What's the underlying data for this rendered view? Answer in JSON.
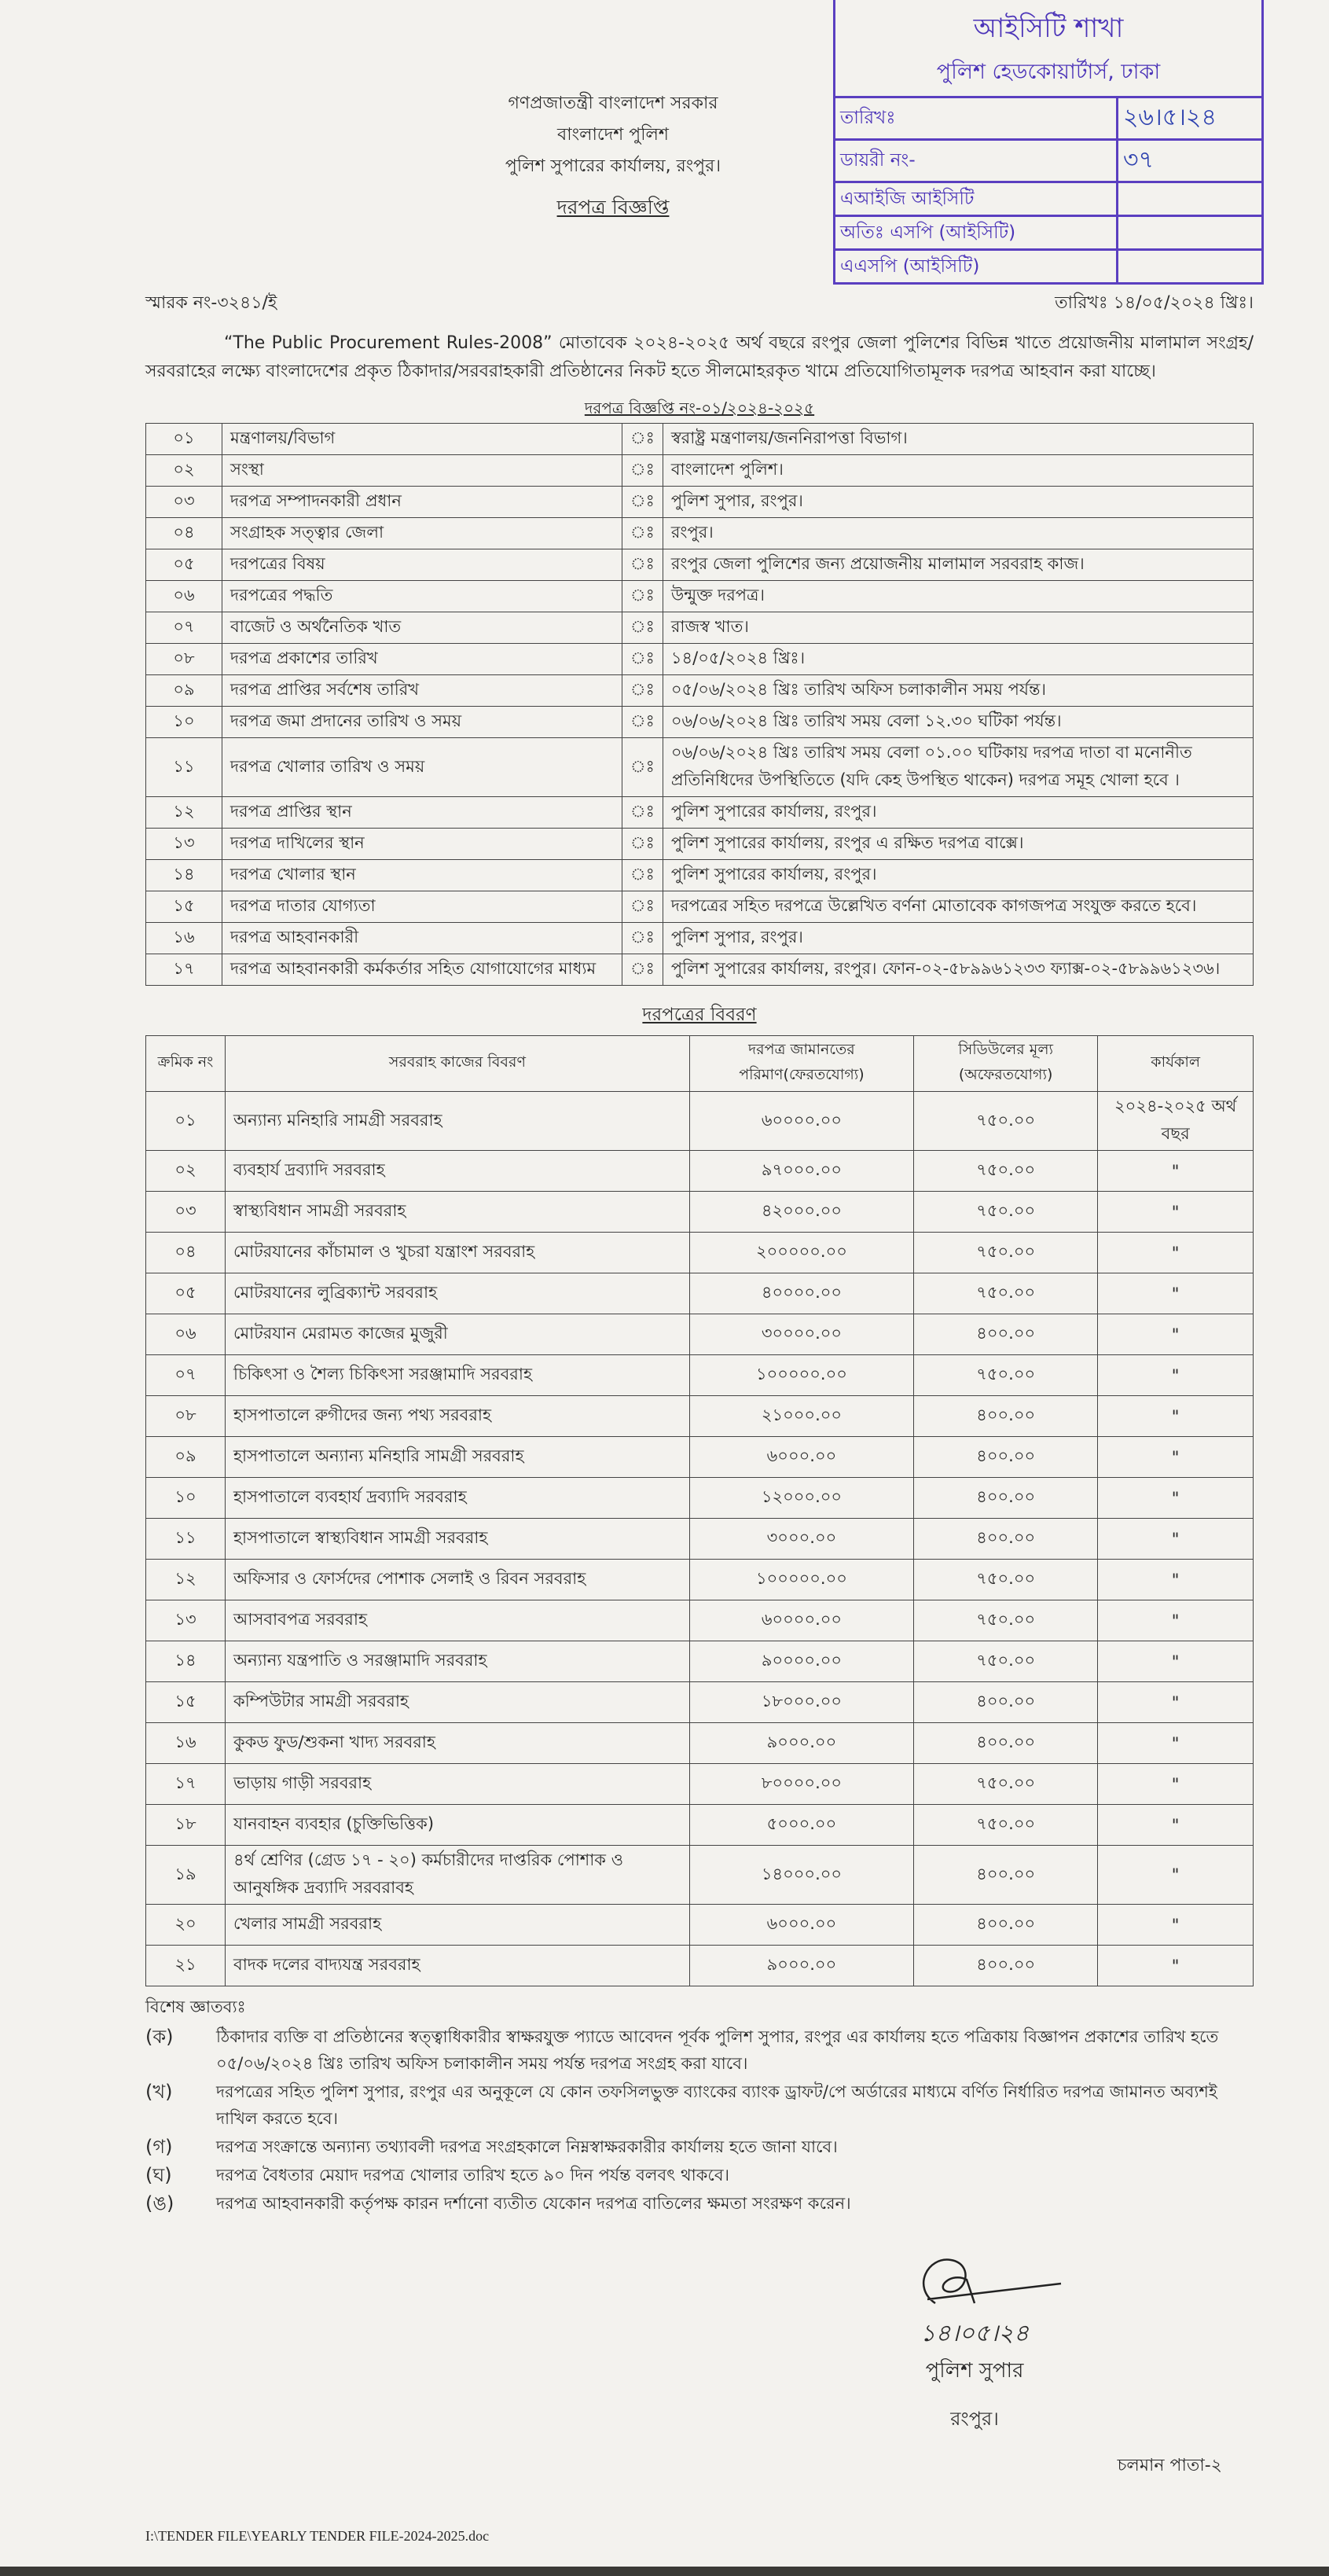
{
  "stamp": {
    "title": "আইসিটি শাখা",
    "subtitle": "পুলিশ হেডকোয়ার্টার্স, ঢাকা",
    "rows": [
      {
        "label": "তারিখঃ",
        "value": "২৬।৫।২৪"
      },
      {
        "label": "ডায়রী নং-",
        "value": "৩৭"
      },
      {
        "label": "এআইজি আইসিটি",
        "value": ""
      },
      {
        "label": "অতিঃ এসপি (আইসিটি)",
        "value": ""
      },
      {
        "label": "এএসপি (আইসিটি)",
        "value": ""
      }
    ]
  },
  "header": {
    "line1": "গণপ্রজাতন্ত্রী বাংলাদেশ সরকার",
    "line2": "বাংলাদেশ পুলিশ",
    "line3": "পুলিশ সুপারের কার্যালয়, রংপুর।",
    "title": "দরপত্র বিজ্ঞপ্তি"
  },
  "memo_no": "স্মারক নং-৩২৪১/ই",
  "date": "তারিখঃ ১৪/০৫/২০২৪ খ্রিঃ।",
  "intro": "“The Public Procurement Rules-2008” মোতাবেক ২০২৪-২০২৫ অর্থ বছরে রংপুর জেলা পুলিশের বিভিন্ন খাতে প্রয়োজনীয় মালামাল সংগ্রহ/সরবরাহের লক্ষ্যে বাংলাদেশের প্রকৃত ঠিকাদার/সরবরাহকারী প্রতিষ্ঠানের নিকট হতে সীলমোহরকৃত খামে প্রতিযোগিতামূলক দরপত্র আহবান করা যাচ্ছে।",
  "notice_no": "দরপত্র বিজ্ঞপ্তি নং-০১/২০২৪-২০২৫",
  "info_table": [
    {
      "no": "০১",
      "label": "মন্ত্রণালয়/বিভাগ",
      "value": "স্বরাষ্ট্র মন্ত্রণালয়/জননিরাপত্তা বিভাগ।"
    },
    {
      "no": "০২",
      "label": "সংস্থা",
      "value": "বাংলাদেশ পুলিশ।"
    },
    {
      "no": "০৩",
      "label": "দরপত্র সম্পাদনকারী প্রধান",
      "value": "পুলিশ সুপার, রংপুর।"
    },
    {
      "no": "০৪",
      "label": "সংগ্রাহক সত্ত্বার জেলা",
      "value": "রংপুর।"
    },
    {
      "no": "০৫",
      "label": "দরপত্রের বিষয়",
      "value": "রংপুর জেলা পুলিশের জন্য প্রয়োজনীয় মালামাল সরবরাহ কাজ।"
    },
    {
      "no": "০৬",
      "label": "দরপত্রের পদ্ধতি",
      "value": "উন্মুক্ত দরপত্র।"
    },
    {
      "no": "০৭",
      "label": "বাজেট ও অর্থনৈতিক খাত",
      "value": "রাজস্ব খাত।"
    },
    {
      "no": "০৮",
      "label": "দরপত্র প্রকাশের তারিখ",
      "value": "১৪/০৫/২০২৪ খ্রিঃ।"
    },
    {
      "no": "০৯",
      "label": "দরপত্র প্রাপ্তির সর্বশেষ তারিখ",
      "value": "০৫/০৬/২০২৪ খ্রিঃ তারিখ অফিস চলাকালীন সময় পর্যন্ত।"
    },
    {
      "no": "১০",
      "label": "দরপত্র জমা প্রদানের তারিখ ও সময়",
      "value": "০৬/০৬/২০২৪ খ্রিঃ তারিখ সময় বেলা ১২.৩০ ঘটিকা পর্যন্ত।"
    },
    {
      "no": "১১",
      "label": "দরপত্র খোলার তারিখ ও সময়",
      "value": "০৬/০৬/২০২৪ খ্রিঃ তারিখ সময় বেলা ০১.০০ ঘটিকায় দরপত্র দাতা বা মনোনীত প্রতিনিধিদের উপস্থিতিতে (যদি কেহ উপস্থিত থাকেন) দরপত্র সমূহ খোলা হবে ।"
    },
    {
      "no": "১২",
      "label": "দরপত্র প্রাপ্তির স্থান",
      "value": "পুলিশ সুপারের কার্যালয়, রংপুর।"
    },
    {
      "no": "১৩",
      "label": "দরপত্র দাখিলের স্থান",
      "value": "পুলিশ সুপারের কার্যালয়, রংপুর এ রক্ষিত দরপত্র বাক্সে।"
    },
    {
      "no": "১৪",
      "label": "দরপত্র খোলার স্থান",
      "value": "পুলিশ সুপারের কার্যালয়, রংপুর।"
    },
    {
      "no": "১৫",
      "label": "দরপত্র দাতার যোগ্যতা",
      "value": "দরপত্রের সহিত দরপত্রে উল্লেখিত বর্ণনা মোতাবেক কাগজপত্র সংযুক্ত করতে হবে।"
    },
    {
      "no": "১৬",
      "label": "দরপত্র আহবানকারী",
      "value": "পুলিশ সুপার, রংপুর।"
    },
    {
      "no": "১৭",
      "label": "দরপত্র আহবানকারী কর্মকর্তার সহিত যোগাযোগের মাধ্যম",
      "value": "পুলিশ সুপারের কার্যালয়, রংপুর। ফোন-০২-৫৮৯৯৬১২৩৩ ফ্যাক্স-০২-৫৮৯৯৬১২৩৬।"
    }
  ],
  "colon": "ঃ",
  "details_title": "দরপত্রের বিবরণ",
  "details_headers": [
    "ক্রমিক নং",
    "সরবরাহ কাজের বিবরণ",
    "দরপত্র জামানতের পরিমাণ(ফেরতযোগ্য)",
    "সিডিউলের মূল্য (অফেরতযোগ্য)",
    "কার্যকাল"
  ],
  "details_rows": [
    {
      "no": "০১",
      "desc": "অন্যান্য মনিহারি সামগ্রী সরবরাহ",
      "security": "৬০০০০.০০",
      "schedule": "৭৫০.০০",
      "period": "২০২৪-২০২৫ অর্থ বছর"
    },
    {
      "no": "০২",
      "desc": "ব্যবহার্য দ্রব্যাদি সরবরাহ",
      "security": "৯৭০০০.০০",
      "schedule": "৭৫০.০০",
      "period": "\""
    },
    {
      "no": "০৩",
      "desc": "স্বাস্থ্যবিধান সামগ্রী সরবরাহ",
      "security": "৪২০০০.০০",
      "schedule": "৭৫০.০০",
      "period": "\""
    },
    {
      "no": "০৪",
      "desc": "মোটরযানের কাঁচামাল ও খুচরা যন্ত্রাংশ সরবরাহ",
      "security": "২০০০০০.০০",
      "schedule": "৭৫০.০০",
      "period": "\""
    },
    {
      "no": "০৫",
      "desc": "মোটরযানের লুব্রিক্যান্ট সরবরাহ",
      "security": "৪০০০০.০০",
      "schedule": "৭৫০.০০",
      "period": "\""
    },
    {
      "no": "০৬",
      "desc": "মোটরযান মেরামত কাজের মুজুরী",
      "security": "৩০০০০.০০",
      "schedule": "৪০০.০০",
      "period": "\""
    },
    {
      "no": "০৭",
      "desc": "চিকিৎসা ও শৈল্য চিকিৎসা সরঞ্জামাদি সরবরাহ",
      "security": "১০০০০০.০০",
      "schedule": "৭৫০.০০",
      "period": "\""
    },
    {
      "no": "০৮",
      "desc": "হাসপাতালে রুগীদের জন্য পথ্য সরবরাহ",
      "security": "২১০০০.০০",
      "schedule": "৪০০.০০",
      "period": "\""
    },
    {
      "no": "০৯",
      "desc": "হাসপাতালে অন্যান্য মনিহারি সামগ্রী সরবরাহ",
      "security": "৬০০০.০০",
      "schedule": "৪০০.০০",
      "period": "\""
    },
    {
      "no": "১০",
      "desc": "হাসপাতালে ব্যবহার্য দ্রব্যাদি সরবরাহ",
      "security": "১২০০০.০০",
      "schedule": "৪০০.০০",
      "period": "\""
    },
    {
      "no": "১১",
      "desc": "হাসপাতালে স্বাস্থ্যবিধান সামগ্রী সরবরাহ",
      "security": "৩০০০.০০",
      "schedule": "৪০০.০০",
      "period": "\""
    },
    {
      "no": "১২",
      "desc": "অফিসার ও ফোর্সদের পোশাক সেলাই ও রিবন সরবরাহ",
      "security": "১০০০০০.০০",
      "schedule": "৭৫০.০০",
      "period": "\""
    },
    {
      "no": "১৩",
      "desc": "আসবাবপত্র সরবরাহ",
      "security": "৬০০০০.০০",
      "schedule": "৭৫০.০০",
      "period": "\""
    },
    {
      "no": "১৪",
      "desc": "অন্যান্য যন্ত্রপাতি ও সরঞ্জামাদি সরবরাহ",
      "security": "৯০০০০.০০",
      "schedule": "৭৫০.০০",
      "period": "\""
    },
    {
      "no": "১৫",
      "desc": "কম্পিউটার সামগ্রী সরবরাহ",
      "security": "১৮০০০.০০",
      "schedule": "৪০০.০০",
      "period": "\""
    },
    {
      "no": "১৬",
      "desc": "কুকড ফুড/শুকনা খাদ্য সরবরাহ",
      "security": "৯০০০.০০",
      "schedule": "৪০০.০০",
      "period": "\""
    },
    {
      "no": "১৭",
      "desc": "ভাড়ায় গাড়ী সরবরাহ",
      "security": "৮০০০০.০০",
      "schedule": "৭৫০.০০",
      "period": "\""
    },
    {
      "no": "১৮",
      "desc": "যানবাহন ব্যবহার (চুক্তিভিত্তিক)",
      "security": "৫০০০.০০",
      "schedule": "৭৫০.০০",
      "period": "\""
    },
    {
      "no": "১৯",
      "desc": "৪র্থ শ্রেণির (গ্রেড ১৭ - ২০) কর্মচারীদের দাপ্তরিক পোশাক ও আনুষঙ্গিক দ্রব্যাদি সরবরাবহ",
      "security": "১৪০০০.০০",
      "schedule": "৪০০.০০",
      "period": "\""
    },
    {
      "no": "২০",
      "desc": "খেলার সামগ্রী সরবরাহ",
      "security": "৬০০০.০০",
      "schedule": "৪০০.০০",
      "period": "\""
    },
    {
      "no": "২১",
      "desc": "বাদক দলের বাদ্যযন্ত্র সরবরাহ",
      "security": "৯০০০.০০",
      "schedule": "৪০০.০০",
      "period": "\""
    }
  ],
  "notes_title": "বিশেষ জ্ঞাতব্যঃ",
  "notes": [
    {
      "key": "(ক)",
      "text": "ঠিকাদার ব্যক্তি বা প্রতিষ্ঠানের স্বত্ত্বাধিকারীর স্বাক্ষরযুক্ত প্যাডে আবেদন পূর্বক পুলিশ সুপার, রংপুর এর কার্যালয় হতে পত্রিকায় বিজ্ঞাপন প্রকাশের তারিখ হতে ০৫/০৬/২০২৪ খ্রিঃ তারিখ অফিস চলাকালীন সময় পর্যন্ত দরপত্র সংগ্রহ করা যাবে।"
    },
    {
      "key": "(খ)",
      "text": "দরপত্রের সহিত পুলিশ সুপার, রংপুর এর অনুকূলে যে কোন তফসিলভুক্ত ব্যাংকের ব্যাংক ড্রাফট/পে অর্ডারের মাধ্যমে বর্ণিত নির্ধারিত দরপত্র জামানত অব্যশই দাখিল করতে হবে।"
    },
    {
      "key": "(গ)",
      "text": "দরপত্র সংক্রান্তে অন্যান্য তথ্যাবলী দরপত্র সংগ্রহকালে নিম্নস্বাক্ষরকারীর কার্যালয় হতে জানা যাবে।"
    },
    {
      "key": "(ঘ)",
      "text": "দরপত্র বৈধতার মেয়াদ দরপত্র খোলার তারিখ হতে ৯০ দিন পর্যন্ত বলবৎ থাকবে।"
    },
    {
      "key": "(ঙ)",
      "text": "দরপত্র আহবানকারী কর্তৃপক্ষ কারন দর্শানো ব্যতীত যেকোন দরপত্র বাতিলের ক্ষমতা সংরক্ষণ করেন।"
    }
  ],
  "signature": {
    "date": "১৪।০৫।২৪",
    "title": "পুলিশ সুপার",
    "place": "রংপুর।"
  },
  "continued": "চলমান পাতা-২",
  "footer_path": "I:\\TENDER FILE\\YEARLY TENDER FILE-2024-2025.doc"
}
